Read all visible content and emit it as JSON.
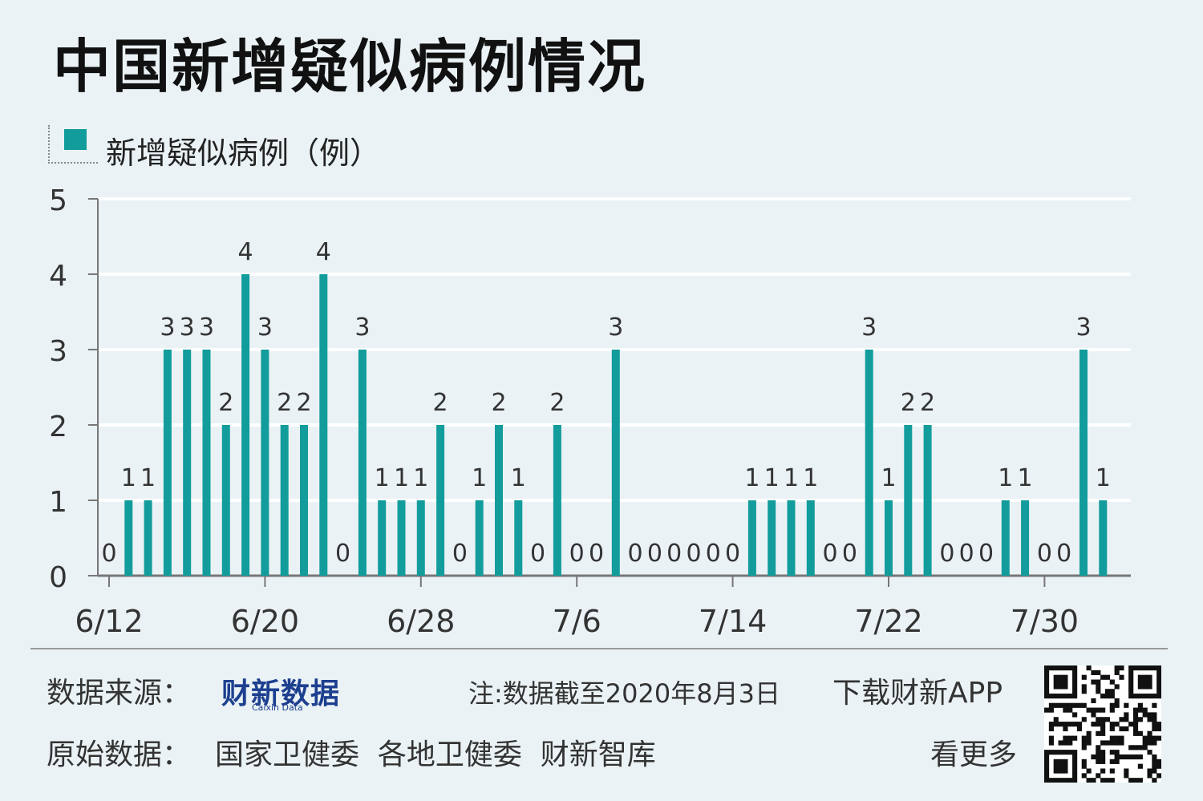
{
  "title": "中国新增疑似病例情况",
  "legend": {
    "label": "新增疑似病例（例）",
    "color": "#139c9c"
  },
  "chart_data": {
    "type": "bar",
    "title": "中国新增疑似病例情况",
    "series": [
      {
        "name": "新增疑似病例（例）",
        "values": [
          0,
          1,
          1,
          3,
          3,
          3,
          2,
          4,
          3,
          2,
          2,
          4,
          0,
          3,
          1,
          1,
          1,
          2,
          0,
          1,
          2,
          1,
          0,
          2,
          0,
          0,
          3,
          0,
          0,
          0,
          0,
          0,
          0,
          1,
          1,
          1,
          1,
          0,
          0,
          3,
          1,
          2,
          2,
          0,
          0,
          0,
          1,
          1,
          0,
          0,
          3,
          1
        ]
      }
    ],
    "x_tick_labels": [
      "6/12",
      "6/20",
      "6/28",
      "7/6",
      "7/14",
      "7/22",
      "7/30"
    ],
    "y_tick_labels": [
      "0",
      "1",
      "2",
      "3",
      "4",
      "5"
    ],
    "ylim": [
      0,
      5
    ],
    "grid": true,
    "legend_position": "top-left"
  },
  "footer": {
    "source_label": "数据来源：",
    "source_logo": "财新数据",
    "source_logo_en": "Caixin Data",
    "note": "注:数据截至2020年8月3日",
    "download": "下载财新APP",
    "raw_label": "原始数据：",
    "raw_sources": "国家卫健委  各地卫健委  财新智库",
    "more": "看更多"
  }
}
